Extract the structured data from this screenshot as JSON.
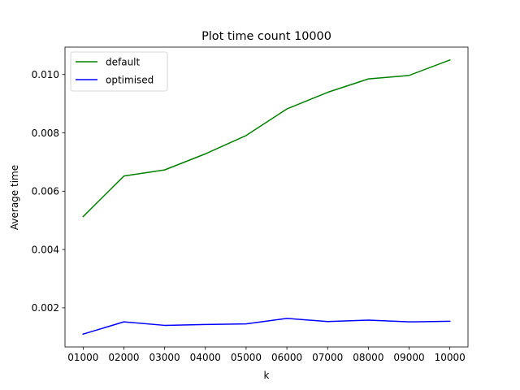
{
  "chart_data": {
    "type": "line",
    "title": "Plot time count 10000",
    "xlabel": "k",
    "ylabel": "Average time",
    "categories": [
      "01000",
      "02000",
      "03000",
      "04000",
      "05000",
      "06000",
      "07000",
      "08000",
      "09000",
      "10000"
    ],
    "series": [
      {
        "name": "default",
        "color": "#008000",
        "values": [
          0.00513,
          0.00652,
          0.00673,
          0.00728,
          0.00791,
          0.00882,
          0.00939,
          0.00985,
          0.00997,
          0.0105
        ]
      },
      {
        "name": "optimised",
        "color": "#0000ff",
        "values": [
          0.0011,
          0.00152,
          0.0014,
          0.00143,
          0.00145,
          0.00164,
          0.00153,
          0.00158,
          0.00152,
          0.00154
        ]
      }
    ],
    "ylim": [
      0.00066,
      0.01094
    ],
    "yticks": [
      0.002,
      0.004,
      0.006,
      0.008,
      0.01
    ],
    "ytick_labels": [
      "0.002",
      "0.004",
      "0.006",
      "0.008",
      "0.010"
    ],
    "grid": false,
    "legend_position": "upper left"
  }
}
